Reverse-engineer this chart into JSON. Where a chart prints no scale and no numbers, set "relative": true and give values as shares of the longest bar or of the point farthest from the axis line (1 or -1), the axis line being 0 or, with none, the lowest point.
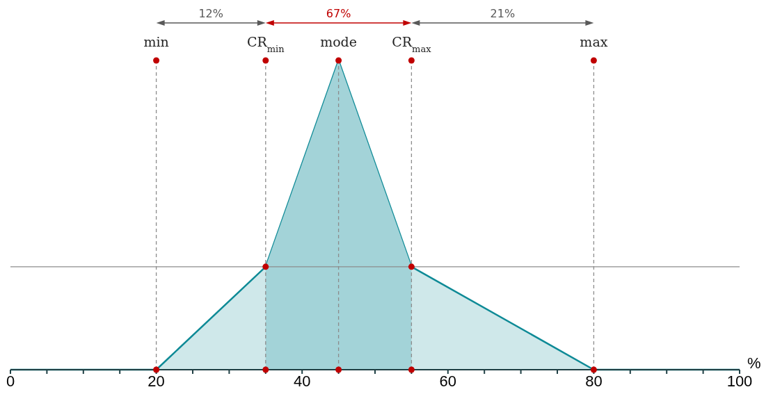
{
  "chart_data": {
    "type": "area",
    "relative": true,
    "xlabel": "%",
    "xlim": [
      0,
      100
    ],
    "xticks": [
      0,
      {
        "value": 5,
        "label": null
      },
      {
        "value": 10,
        "label": null
      },
      {
        "value": 15,
        "label": null
      },
      20,
      {
        "value": 25,
        "label": null
      },
      {
        "value": 30,
        "label": null
      },
      {
        "value": 35,
        "label": null
      },
      40,
      {
        "value": 45,
        "label": null
      },
      {
        "value": 50,
        "label": null
      },
      {
        "value": 55,
        "label": null
      },
      60,
      {
        "value": 65,
        "label": null
      },
      {
        "value": 70,
        "label": null
      },
      {
        "value": 75,
        "label": null
      },
      80,
      {
        "value": 85,
        "label": null
      },
      {
        "value": 90,
        "label": null
      },
      {
        "value": 95,
        "label": null
      },
      100
    ],
    "series": [
      {
        "color": "#0e8a96",
        "x": [
          0,
          20,
          35,
          45,
          55,
          80,
          100
        ],
        "values": [
          0,
          0,
          0.333,
          1,
          0.333,
          0,
          0
        ]
      },
      {
        "color": "#a3d3d8",
        "x": [
          35,
          45,
          55
        ],
        "values": [
          0.333,
          1,
          0.333
        ]
      },
      {
        "type": "scatter",
        "color": "#c00000",
        "x": [
          20,
          35,
          45,
          55,
          80,
          35,
          45,
          55,
          20,
          35,
          55,
          80
        ],
        "values": [
          0,
          0.333,
          1,
          0.333,
          0,
          0,
          0,
          0,
          1,
          1,
          1,
          1
        ]
      }
    ],
    "ref_lines": [
      {
        "axis": "x",
        "value": 20,
        "label": "min",
        "color": "#8c8c8c",
        "line_style": "dashed"
      },
      {
        "axis": "x",
        "value": 35,
        "label": "CR$_{min}$",
        "color": "#8c8c8c",
        "line_style": "dashed"
      },
      {
        "axis": "x",
        "value": 45,
        "label": "mode",
        "color": "#8c8c8c",
        "line_style": "dashed"
      },
      {
        "axis": "x",
        "value": 55,
        "label": "CR$_{max}$",
        "color": "#8c8c8c",
        "line_style": "dashed"
      },
      {
        "axis": "x",
        "value": 80,
        "label": "max",
        "color": "#8c8c8c",
        "line_style": "dashed"
      },
      {
        "axis": "y",
        "value": 0.333,
        "color": "#8c8c8c",
        "line_style": "solid"
      }
    ],
    "annotations": [
      "12%",
      "67%",
      "21%"
    ],
    "grid": false,
    "legend": false
  }
}
